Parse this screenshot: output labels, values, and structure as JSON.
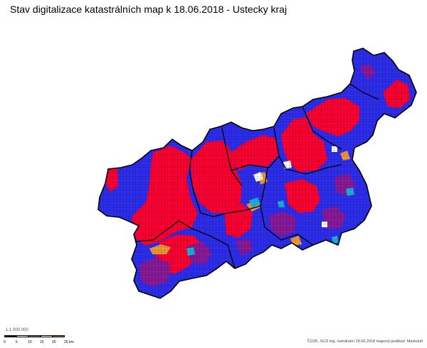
{
  "map": {
    "title": "Stav digitalizace katastrálních map k 18.06.2018 - Ustecky kraj",
    "credit": "ČÚZK, SCD Ing. namáhání 18.06.2018 mapový podklad. Mastoloft",
    "colors": {
      "digital": "#ff0033",
      "vector": "#2e2ef0",
      "mixed": "#8a1a9a",
      "in_progress": "#f29a3a",
      "other": "#18b4e0",
      "none": "#ffffff",
      "border": "#000000"
    }
  },
  "scale": {
    "ratio": "1:1 000 000",
    "labels": [
      "0",
      "5",
      "10",
      "15",
      "20",
      "25 km"
    ],
    "colors": [
      "#000000",
      "#ffffff",
      "#e05a00",
      "#ffffff",
      "#e05a00"
    ]
  }
}
